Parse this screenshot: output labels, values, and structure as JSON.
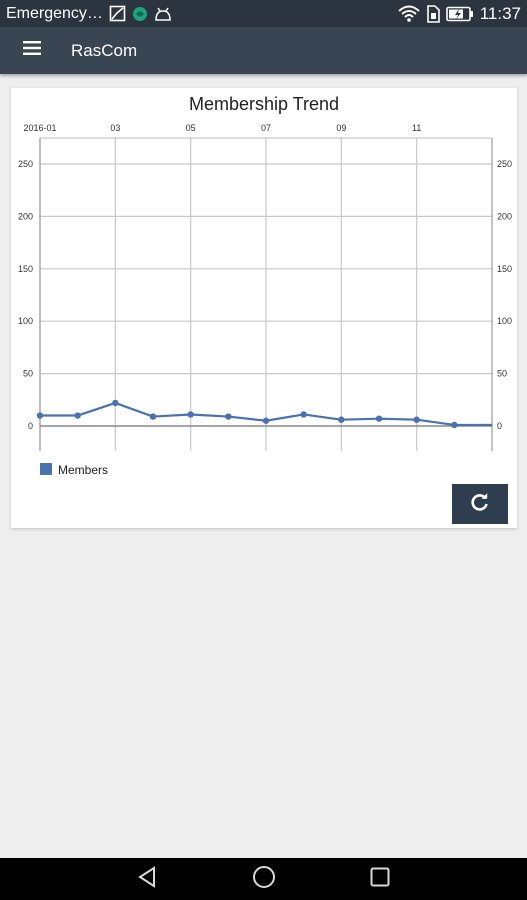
{
  "status_bar": {
    "carrier_text": "Emergency…",
    "time": "11:37",
    "icons": [
      "image-icon",
      "vpn-icon",
      "android-debug-icon",
      "wifi-icon",
      "sim-icon",
      "battery-icon"
    ]
  },
  "app_bar": {
    "title": "RasCom",
    "menu_icon": "hamburger-menu-icon"
  },
  "chart_data": {
    "type": "line",
    "title": "Membership Trend",
    "x_tick_labels": [
      "2016-01",
      "03",
      "05",
      "07",
      "09",
      "11"
    ],
    "x": [
      "2016-01",
      "2016-02",
      "2016-03",
      "2016-04",
      "2016-05",
      "2016-06",
      "2016-07",
      "2016-08",
      "2016-09",
      "2016-10",
      "2016-11",
      "2016-12",
      "2017-01"
    ],
    "series": [
      {
        "name": "Members",
        "color": "#4a72b0",
        "values": [
          10,
          10,
          22,
          9,
          11,
          9,
          5,
          11,
          6,
          7,
          6,
          1,
          1
        ]
      }
    ],
    "y_tick_labels": [
      "0",
      "50",
      "100",
      "150",
      "200",
      "250"
    ],
    "ylim": [
      0,
      250
    ],
    "grid": true,
    "legend_position": "bottom-left"
  },
  "refresh_button": {
    "icon": "refresh-icon"
  },
  "nav_bar": {
    "icons": [
      "back-icon",
      "home-icon",
      "recents-icon"
    ]
  }
}
